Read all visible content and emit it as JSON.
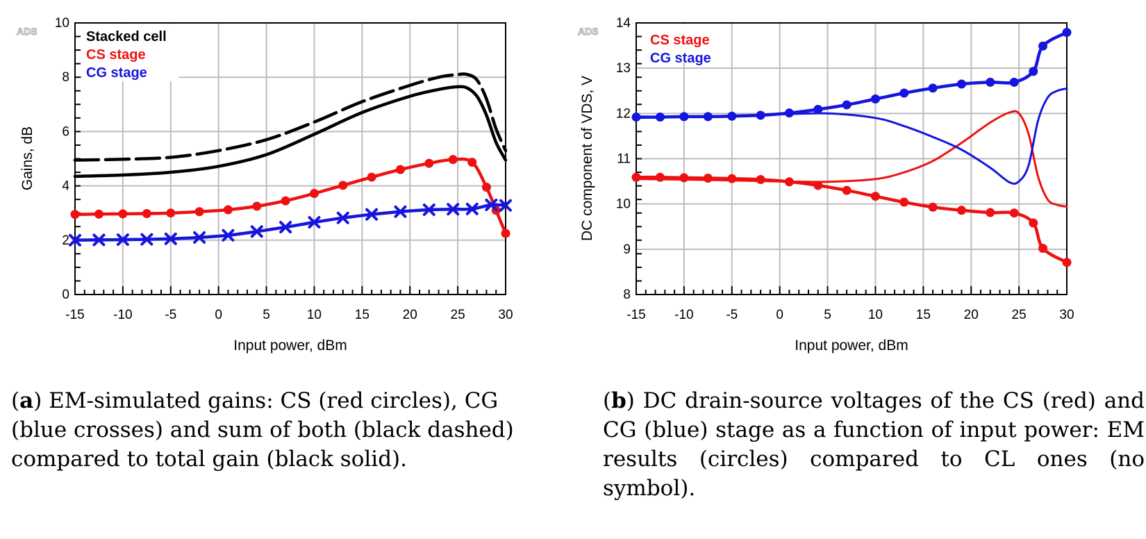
{
  "chart_data": [
    {
      "type": "line",
      "id": "a",
      "watermark": "ADS",
      "xlabel": "Input power, dBm",
      "ylabel": "Gains, dB",
      "xlim": [
        -15,
        30
      ],
      "ylim": [
        0,
        10
      ],
      "xticks": [
        -15,
        -10,
        -5,
        0,
        5,
        10,
        15,
        20,
        25,
        30
      ],
      "yticks": [
        0,
        2,
        4,
        6,
        8,
        10
      ],
      "grid": true,
      "legend_position": "top-left",
      "legend": [
        {
          "label": "Stacked cell",
          "color": "#000000"
        },
        {
          "label": "CS stage",
          "color": "#ee1111"
        },
        {
          "label": "CG stage",
          "color": "#1515dd"
        }
      ],
      "series": [
        {
          "name": "Sum of CS and CG (EM)",
          "color": "#000000",
          "style": "dashed",
          "marker": "none",
          "x": [
            -15,
            -10,
            -5,
            0,
            5,
            10,
            15,
            20,
            23,
            25,
            26,
            27,
            28,
            29,
            30
          ],
          "y": [
            4.95,
            4.98,
            5.05,
            5.3,
            5.7,
            6.35,
            7.1,
            7.7,
            8.0,
            8.1,
            8.1,
            7.9,
            7.2,
            6.1,
            5.3
          ]
        },
        {
          "name": "Stacked cell",
          "color": "#000000",
          "style": "solid",
          "marker": "none",
          "x": [
            -15,
            -10,
            -5,
            0,
            5,
            10,
            15,
            20,
            23,
            25,
            26,
            27,
            28,
            29,
            30
          ],
          "y": [
            4.35,
            4.4,
            4.5,
            4.72,
            5.15,
            5.9,
            6.7,
            7.3,
            7.55,
            7.65,
            7.6,
            7.3,
            6.6,
            5.6,
            4.95
          ]
        },
        {
          "name": "CS stage",
          "color": "#ee1111",
          "style": "solid",
          "marker": "circle",
          "x": [
            -15,
            -12.5,
            -10,
            -7.5,
            -5,
            -2,
            1,
            4,
            7,
            10,
            13,
            16,
            19,
            22,
            24.5,
            26.5,
            28,
            29,
            30
          ],
          "y": [
            2.95,
            2.96,
            2.97,
            2.98,
            3.0,
            3.05,
            3.12,
            3.25,
            3.45,
            3.72,
            4.02,
            4.32,
            4.6,
            4.83,
            4.97,
            4.87,
            3.95,
            3.1,
            2.25
          ]
        },
        {
          "name": "CG stage",
          "color": "#1515dd",
          "style": "solid",
          "marker": "cross",
          "x": [
            -15,
            -12.5,
            -10,
            -7.5,
            -5,
            -2,
            1,
            4,
            7,
            10,
            13,
            16,
            19,
            22,
            24.5,
            26.5,
            28.5,
            30
          ],
          "y": [
            2.0,
            2.01,
            2.02,
            2.03,
            2.05,
            2.1,
            2.18,
            2.32,
            2.48,
            2.66,
            2.82,
            2.95,
            3.05,
            3.12,
            3.14,
            3.15,
            3.3,
            3.28
          ]
        }
      ]
    },
    {
      "type": "line",
      "id": "b",
      "watermark": "ADS",
      "xlabel": "Input power, dBm",
      "ylabel": "DC component of VDS, V",
      "xlim": [
        -15,
        30
      ],
      "ylim": [
        8,
        14
      ],
      "xticks": [
        -15,
        -10,
        -5,
        0,
        5,
        10,
        15,
        20,
        25,
        30
      ],
      "yticks": [
        8,
        9,
        10,
        11,
        12,
        13,
        14
      ],
      "grid": true,
      "legend_position": "top-left",
      "legend": [
        {
          "label": "CS stage",
          "color": "#ee1111"
        },
        {
          "label": "CG stage",
          "color": "#1515dd"
        }
      ],
      "series": [
        {
          "name": "CS stage (EM)",
          "color": "#ee1111",
          "style": "solid",
          "width": "thick",
          "marker": "circle",
          "x": [
            -15,
            -12.5,
            -10,
            -7.5,
            -5,
            -2,
            1,
            4,
            7,
            10,
            13,
            16,
            19,
            22,
            24.5,
            26.5,
            27.5,
            30
          ],
          "y": [
            10.59,
            10.59,
            10.58,
            10.57,
            10.56,
            10.54,
            10.49,
            10.41,
            10.3,
            10.17,
            10.04,
            9.93,
            9.86,
            9.81,
            9.8,
            9.58,
            9.02,
            8.71
          ]
        },
        {
          "name": "CG stage (EM)",
          "color": "#1515dd",
          "style": "solid",
          "width": "thick",
          "marker": "circle",
          "x": [
            -15,
            -12.5,
            -10,
            -7.5,
            -5,
            -2,
            1,
            4,
            7,
            10,
            13,
            16,
            19,
            22,
            24.5,
            26.5,
            27.5,
            30
          ],
          "y": [
            11.92,
            11.92,
            11.93,
            11.93,
            11.94,
            11.96,
            12.01,
            12.09,
            12.19,
            12.32,
            12.45,
            12.56,
            12.65,
            12.69,
            12.69,
            12.93,
            13.49,
            13.79
          ]
        },
        {
          "name": "CS stage (CL)",
          "color": "#ee1111",
          "style": "solid",
          "width": "thin",
          "marker": "none",
          "x": [
            -15,
            -10,
            -5,
            0,
            5,
            10,
            13,
            16,
            19,
            22,
            24,
            25,
            26,
            27,
            28,
            29,
            30
          ],
          "y": [
            10.55,
            10.54,
            10.52,
            10.5,
            10.49,
            10.55,
            10.7,
            10.95,
            11.35,
            11.8,
            12.02,
            12.0,
            11.55,
            10.6,
            10.1,
            9.98,
            9.94
          ]
        },
        {
          "name": "CG stage (CL)",
          "color": "#1515dd",
          "style": "solid",
          "width": "thin",
          "marker": "none",
          "x": [
            -15,
            -10,
            -5,
            0,
            5,
            10,
            13,
            16,
            19,
            22,
            24,
            25,
            26,
            27,
            28,
            29,
            30
          ],
          "y": [
            11.9,
            11.92,
            11.95,
            11.98,
            12.0,
            11.9,
            11.72,
            11.48,
            11.2,
            10.8,
            10.48,
            10.5,
            10.85,
            11.85,
            12.35,
            12.5,
            12.55
          ]
        }
      ]
    }
  ],
  "captions": {
    "a": {
      "letter": "a",
      "text": " EM-simulated gains: CS (red circles), CG (blue crosses) and sum of both (black dashed) compared to total gain (black solid)."
    },
    "b": {
      "letter": "b",
      "text": " DC drain-source voltages of the CS (red) and CG (blue) stage as a function of input power: EM results (circles) compared to CL ones (no symbol)."
    }
  }
}
